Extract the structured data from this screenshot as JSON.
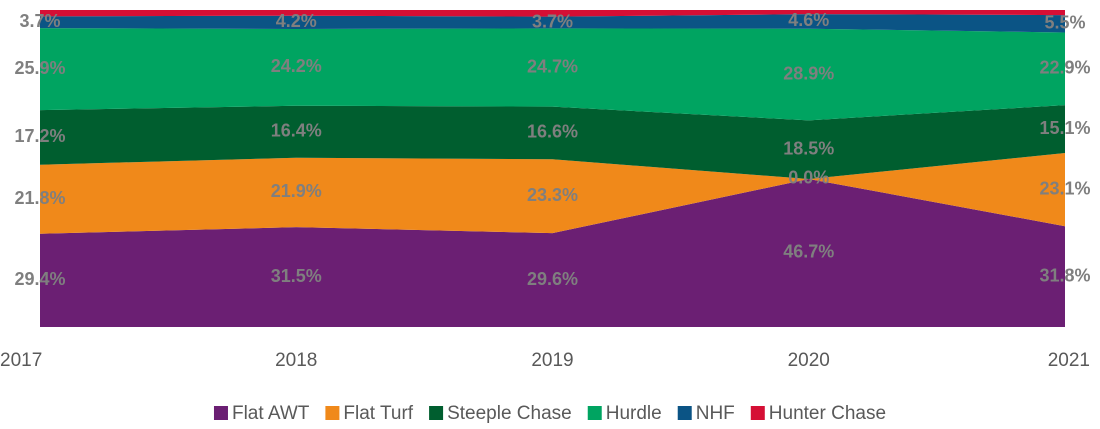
{
  "chart_data": {
    "type": "stacked_area",
    "categories": [
      "2017",
      "2018",
      "2019",
      "2020",
      "2021"
    ],
    "ylim": [
      0,
      100
    ],
    "series": [
      {
        "name": "Flat AWT",
        "color": "#6b1f73",
        "values": [
          29.4,
          31.5,
          29.6,
          46.7,
          31.8
        ],
        "value_labels": [
          "29.4%",
          "31.5%",
          "29.6%",
          "46.7%",
          "31.8%"
        ]
      },
      {
        "name": "Flat Turf",
        "color": "#f0891a",
        "values": [
          21.8,
          21.9,
          23.3,
          0.0,
          23.1
        ],
        "value_labels": [
          "21.8%",
          "21.9%",
          "23.3%",
          "0.0%",
          "23.1%"
        ]
      },
      {
        "name": "Steeple Chase",
        "color": "#005e2f",
        "values": [
          17.2,
          16.4,
          16.6,
          18.5,
          15.1
        ],
        "value_labels": [
          "17.2%",
          "16.4%",
          "16.6%",
          "18.5%",
          "15.1%"
        ]
      },
      {
        "name": "Hurdle",
        "color": "#00a461",
        "values": [
          25.9,
          24.2,
          24.7,
          28.9,
          22.9
        ],
        "value_labels": [
          "25.9%",
          "24.2%",
          "24.7%",
          "28.9%",
          "22.9%"
        ]
      },
      {
        "name": "NHF",
        "color": "#0b5485",
        "values": [
          3.7,
          4.2,
          3.7,
          4.6,
          5.5
        ],
        "value_labels": [
          "3.7%",
          "4.2%",
          "3.7%",
          "4.6%",
          "5.5%"
        ]
      },
      {
        "name": "Hunter Chase",
        "color": "#d50f35",
        "values": [
          2.0,
          1.8,
          2.1,
          1.3,
          1.6
        ]
      }
    ]
  }
}
